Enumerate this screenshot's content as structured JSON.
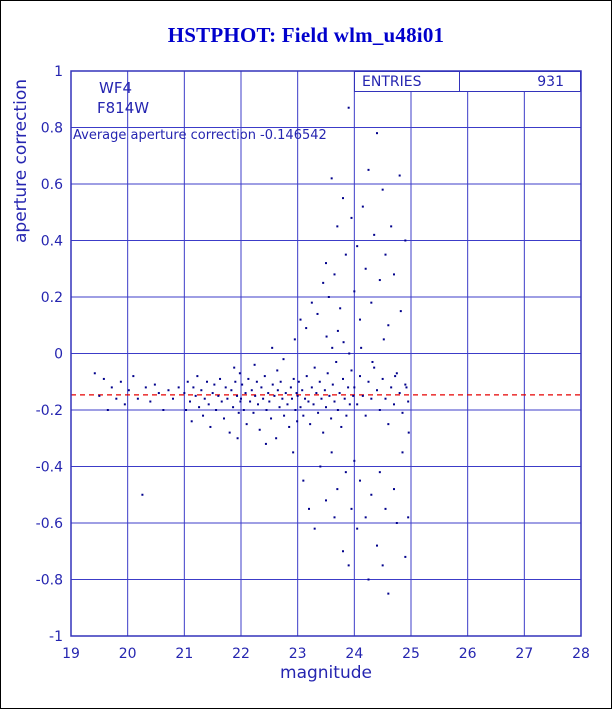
{
  "page": {
    "title": "HSTPHOT: Field wlm_u48i01"
  },
  "stats_box": {
    "label": "ENTRIES",
    "value": "931"
  },
  "annotations": {
    "camera": "WF4",
    "filter": "F814W",
    "average_text": "Average aperture correction -0.146542"
  },
  "chart_data": {
    "type": "scatter",
    "title": "HSTPHOT: Field wlm_u48i01",
    "xlabel": "magnitude",
    "ylabel": "aperture correction",
    "xlim": [
      19,
      28
    ],
    "ylim": [
      -1,
      1
    ],
    "x_ticks": [
      19,
      20,
      21,
      22,
      23,
      24,
      25,
      26,
      27,
      28
    ],
    "y_ticks": [
      -1,
      -0.8,
      -0.6,
      -0.4,
      -0.2,
      0,
      0.2,
      0.4,
      0.6,
      0.8,
      1
    ],
    "grid": true,
    "legend": "none",
    "entries": 931,
    "average_aperture_correction": -0.146542,
    "reference_line": {
      "y": -0.146542,
      "style": "dashed",
      "color": "#e60000"
    },
    "colors": {
      "frame": "#3333bb",
      "grid": "#3c3cc8",
      "points": "#00008b",
      "text": "#2525b0",
      "title": "#0000cc",
      "reference": "#e60000"
    },
    "points": [
      [
        19.42,
        -0.07
      ],
      [
        19.5,
        -0.15
      ],
      [
        19.58,
        -0.09
      ],
      [
        19.65,
        -0.2
      ],
      [
        19.72,
        -0.12
      ],
      [
        19.8,
        -0.16
      ],
      [
        19.88,
        -0.1
      ],
      [
        19.95,
        -0.18
      ],
      [
        20.02,
        -0.13
      ],
      [
        20.1,
        -0.08
      ],
      [
        20.18,
        -0.16
      ],
      [
        20.26,
        -0.5
      ],
      [
        20.32,
        -0.12
      ],
      [
        20.4,
        -0.17
      ],
      [
        20.48,
        -0.11
      ],
      [
        20.55,
        -0.14
      ],
      [
        20.63,
        -0.2
      ],
      [
        20.72,
        -0.13
      ],
      [
        20.8,
        -0.16
      ],
      [
        20.9,
        -0.12
      ],
      [
        21.0,
        -0.14
      ],
      [
        21.03,
        -0.2
      ],
      [
        21.06,
        -0.1
      ],
      [
        21.1,
        -0.17
      ],
      [
        21.13,
        -0.24
      ],
      [
        21.16,
        -0.12
      ],
      [
        21.2,
        -0.15
      ],
      [
        21.23,
        -0.08
      ],
      [
        21.26,
        -0.19
      ],
      [
        21.3,
        -0.13
      ],
      [
        21.33,
        -0.22
      ],
      [
        21.36,
        -0.16
      ],
      [
        21.4,
        -0.1
      ],
      [
        21.43,
        -0.18
      ],
      [
        21.46,
        -0.26
      ],
      [
        21.5,
        -0.14
      ],
      [
        21.53,
        -0.11
      ],
      [
        21.56,
        -0.2
      ],
      [
        21.6,
        -0.15
      ],
      [
        21.63,
        -0.09
      ],
      [
        21.66,
        -0.17
      ],
      [
        21.7,
        -0.23
      ],
      [
        21.73,
        -0.12
      ],
      [
        21.76,
        -0.16
      ],
      [
        21.8,
        -0.28
      ],
      [
        21.83,
        -0.13
      ],
      [
        21.86,
        -0.19
      ],
      [
        21.9,
        -0.1
      ],
      [
        21.93,
        -0.15
      ],
      [
        21.96,
        -0.21
      ],
      [
        21.98,
        -0.07
      ],
      [
        21.99,
        -0.17
      ],
      [
        21.94,
        -0.3
      ],
      [
        21.88,
        -0.05
      ],
      [
        22.0,
        -0.16
      ],
      [
        22.02,
        -0.11
      ],
      [
        22.05,
        -0.2
      ],
      [
        22.08,
        -0.14
      ],
      [
        22.1,
        -0.25
      ],
      [
        22.13,
        -0.09
      ],
      [
        22.16,
        -0.17
      ],
      [
        22.19,
        -0.13
      ],
      [
        22.22,
        -0.21
      ],
      [
        22.25,
        -0.15
      ],
      [
        22.28,
        -0.1
      ],
      [
        22.3,
        -0.18
      ],
      [
        22.33,
        -0.27
      ],
      [
        22.36,
        -0.12
      ],
      [
        22.39,
        -0.16
      ],
      [
        22.42,
        -0.08
      ],
      [
        22.45,
        -0.2
      ],
      [
        22.48,
        -0.14
      ],
      [
        22.5,
        -0.17
      ],
      [
        22.53,
        -0.23
      ],
      [
        22.55,
        0.02
      ],
      [
        22.56,
        -0.11
      ],
      [
        22.59,
        -0.15
      ],
      [
        22.62,
        -0.3
      ],
      [
        22.65,
        -0.13
      ],
      [
        22.68,
        -0.19
      ],
      [
        22.7,
        -0.1
      ],
      [
        22.73,
        -0.16
      ],
      [
        22.75,
        -0.02
      ],
      [
        22.76,
        -0.22
      ],
      [
        22.79,
        -0.14
      ],
      [
        22.82,
        -0.18
      ],
      [
        22.85,
        -0.26
      ],
      [
        22.88,
        -0.12
      ],
      [
        22.9,
        -0.16
      ],
      [
        22.92,
        -0.35
      ],
      [
        22.93,
        -0.09
      ],
      [
        22.95,
        0.05
      ],
      [
        22.96,
        -0.2
      ],
      [
        22.98,
        -0.14
      ],
      [
        22.99,
        -0.24
      ],
      [
        22.64,
        -0.06
      ],
      [
        22.44,
        -0.32
      ],
      [
        22.24,
        -0.04
      ],
      [
        23.0,
        -0.15
      ],
      [
        23.02,
        -0.1
      ],
      [
        23.05,
        -0.19
      ],
      [
        23.08,
        -0.13
      ],
      [
        23.1,
        -0.22
      ],
      [
        23.13,
        -0.16
      ],
      [
        23.16,
        -0.08
      ],
      [
        23.19,
        -0.17
      ],
      [
        23.22,
        -0.25
      ],
      [
        23.25,
        -0.12
      ],
      [
        23.28,
        -0.18
      ],
      [
        23.3,
        -0.05
      ],
      [
        23.33,
        -0.14
      ],
      [
        23.36,
        -0.21
      ],
      [
        23.39,
        -0.1
      ],
      [
        23.42,
        -0.16
      ],
      [
        23.45,
        -0.28
      ],
      [
        23.48,
        -0.13
      ],
      [
        23.5,
        -0.19
      ],
      [
        23.53,
        -0.07
      ],
      [
        23.56,
        -0.15
      ],
      [
        23.59,
        -0.23
      ],
      [
        23.62,
        -0.11
      ],
      [
        23.65,
        -0.17
      ],
      [
        23.68,
        -0.03
      ],
      [
        23.71,
        -0.2
      ],
      [
        23.74,
        -0.14
      ],
      [
        23.77,
        -0.26
      ],
      [
        23.8,
        -0.09
      ],
      [
        23.83,
        -0.16
      ],
      [
        23.86,
        -0.22
      ],
      [
        23.89,
        -0.12
      ],
      [
        23.92,
        -0.18
      ],
      [
        23.95,
        -0.06
      ],
      [
        23.98,
        -0.15
      ],
      [
        23.91,
        0.0
      ],
      [
        23.81,
        0.04
      ],
      [
        23.71,
        0.08
      ],
      [
        23.61,
        0.02
      ],
      [
        23.51,
        0.06
      ],
      [
        24.0,
        -0.12
      ],
      [
        24.05,
        -0.18
      ],
      [
        24.1,
        -0.08
      ],
      [
        24.15,
        -0.15
      ],
      [
        24.2,
        -0.22
      ],
      [
        24.25,
        -0.1
      ],
      [
        24.3,
        -0.16
      ],
      [
        24.35,
        -0.05
      ],
      [
        24.4,
        -0.13
      ],
      [
        24.45,
        -0.2
      ],
      [
        24.5,
        -0.09
      ],
      [
        24.55,
        -0.16
      ],
      [
        24.6,
        -0.25
      ],
      [
        24.65,
        -0.12
      ],
      [
        24.7,
        -0.18
      ],
      [
        24.75,
        -0.07
      ],
      [
        24.8,
        -0.14
      ],
      [
        24.85,
        -0.21
      ],
      [
        24.9,
        -0.11
      ],
      [
        24.95,
        -0.17
      ],
      [
        23.05,
        0.12
      ],
      [
        23.15,
        0.09
      ],
      [
        23.25,
        0.18
      ],
      [
        23.35,
        0.14
      ],
      [
        23.45,
        0.25
      ],
      [
        23.5,
        0.32
      ],
      [
        23.55,
        0.2
      ],
      [
        23.6,
        0.62
      ],
      [
        23.65,
        0.28
      ],
      [
        23.7,
        0.45
      ],
      [
        23.75,
        0.16
      ],
      [
        23.8,
        0.55
      ],
      [
        23.85,
        0.35
      ],
      [
        23.9,
        0.87
      ],
      [
        23.95,
        0.48
      ],
      [
        24.0,
        0.22
      ],
      [
        24.05,
        0.38
      ],
      [
        24.1,
        0.12
      ],
      [
        24.15,
        0.52
      ],
      [
        24.2,
        0.3
      ],
      [
        24.25,
        0.65
      ],
      [
        24.3,
        0.18
      ],
      [
        24.35,
        0.42
      ],
      [
        24.4,
        0.78
      ],
      [
        24.45,
        0.26
      ],
      [
        24.5,
        0.58
      ],
      [
        24.55,
        0.35
      ],
      [
        24.6,
        0.1
      ],
      [
        24.65,
        0.45
      ],
      [
        24.7,
        0.28
      ],
      [
        24.8,
        0.63
      ],
      [
        24.9,
        0.4
      ],
      [
        23.1,
        -0.45
      ],
      [
        23.2,
        -0.55
      ],
      [
        23.3,
        -0.62
      ],
      [
        23.4,
        -0.4
      ],
      [
        23.5,
        -0.52
      ],
      [
        23.6,
        -0.35
      ],
      [
        23.65,
        -0.58
      ],
      [
        23.7,
        -0.48
      ],
      [
        23.8,
        -0.7
      ],
      [
        23.85,
        -0.42
      ],
      [
        23.9,
        -0.75
      ],
      [
        23.95,
        -0.55
      ],
      [
        24.0,
        -0.38
      ],
      [
        24.05,
        -0.62
      ],
      [
        24.1,
        -0.45
      ],
      [
        24.2,
        -0.58
      ],
      [
        24.25,
        -0.8
      ],
      [
        24.3,
        -0.5
      ],
      [
        24.4,
        -0.68
      ],
      [
        24.45,
        -0.42
      ],
      [
        24.5,
        -0.75
      ],
      [
        24.55,
        -0.55
      ],
      [
        24.6,
        -0.85
      ],
      [
        24.7,
        -0.48
      ],
      [
        24.75,
        -0.6
      ],
      [
        24.85,
        -0.35
      ],
      [
        24.9,
        -0.72
      ],
      [
        24.95,
        -0.58
      ],
      [
        24.12,
        0.02
      ],
      [
        24.32,
        -0.03
      ],
      [
        24.52,
        0.05
      ],
      [
        24.72,
        -0.08
      ],
      [
        24.82,
        0.15
      ],
      [
        24.92,
        -0.12
      ],
      [
        24.96,
        -0.28
      ]
    ]
  }
}
